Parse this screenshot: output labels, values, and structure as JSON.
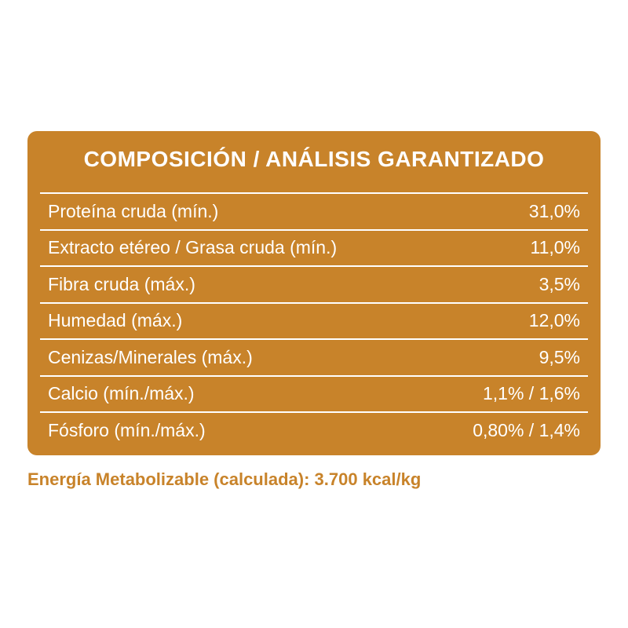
{
  "table": {
    "title": "COMPOSICIÓN / ANÁLISIS GARANTIZADO",
    "rows": [
      [
        "Proteína cruda (mín.)",
        "31,0%"
      ],
      [
        "Extracto etéreo / Grasa cruda (mín.)",
        "11,0%"
      ],
      [
        "Fibra cruda (máx.)",
        "3,5%"
      ],
      [
        "Humedad (máx.)",
        "12,0%"
      ],
      [
        "Cenizas/Minerales (máx.)",
        "9,5%"
      ],
      [
        "Calcio (mín./máx.)",
        "1,1% / 1,6%"
      ],
      [
        "Fósforo (mín./máx.)",
        "0,80% / 1,4%"
      ]
    ]
  },
  "footer": {
    "text": "Energía Metabolizable (calculada): 3.700 kcal/kg"
  }
}
